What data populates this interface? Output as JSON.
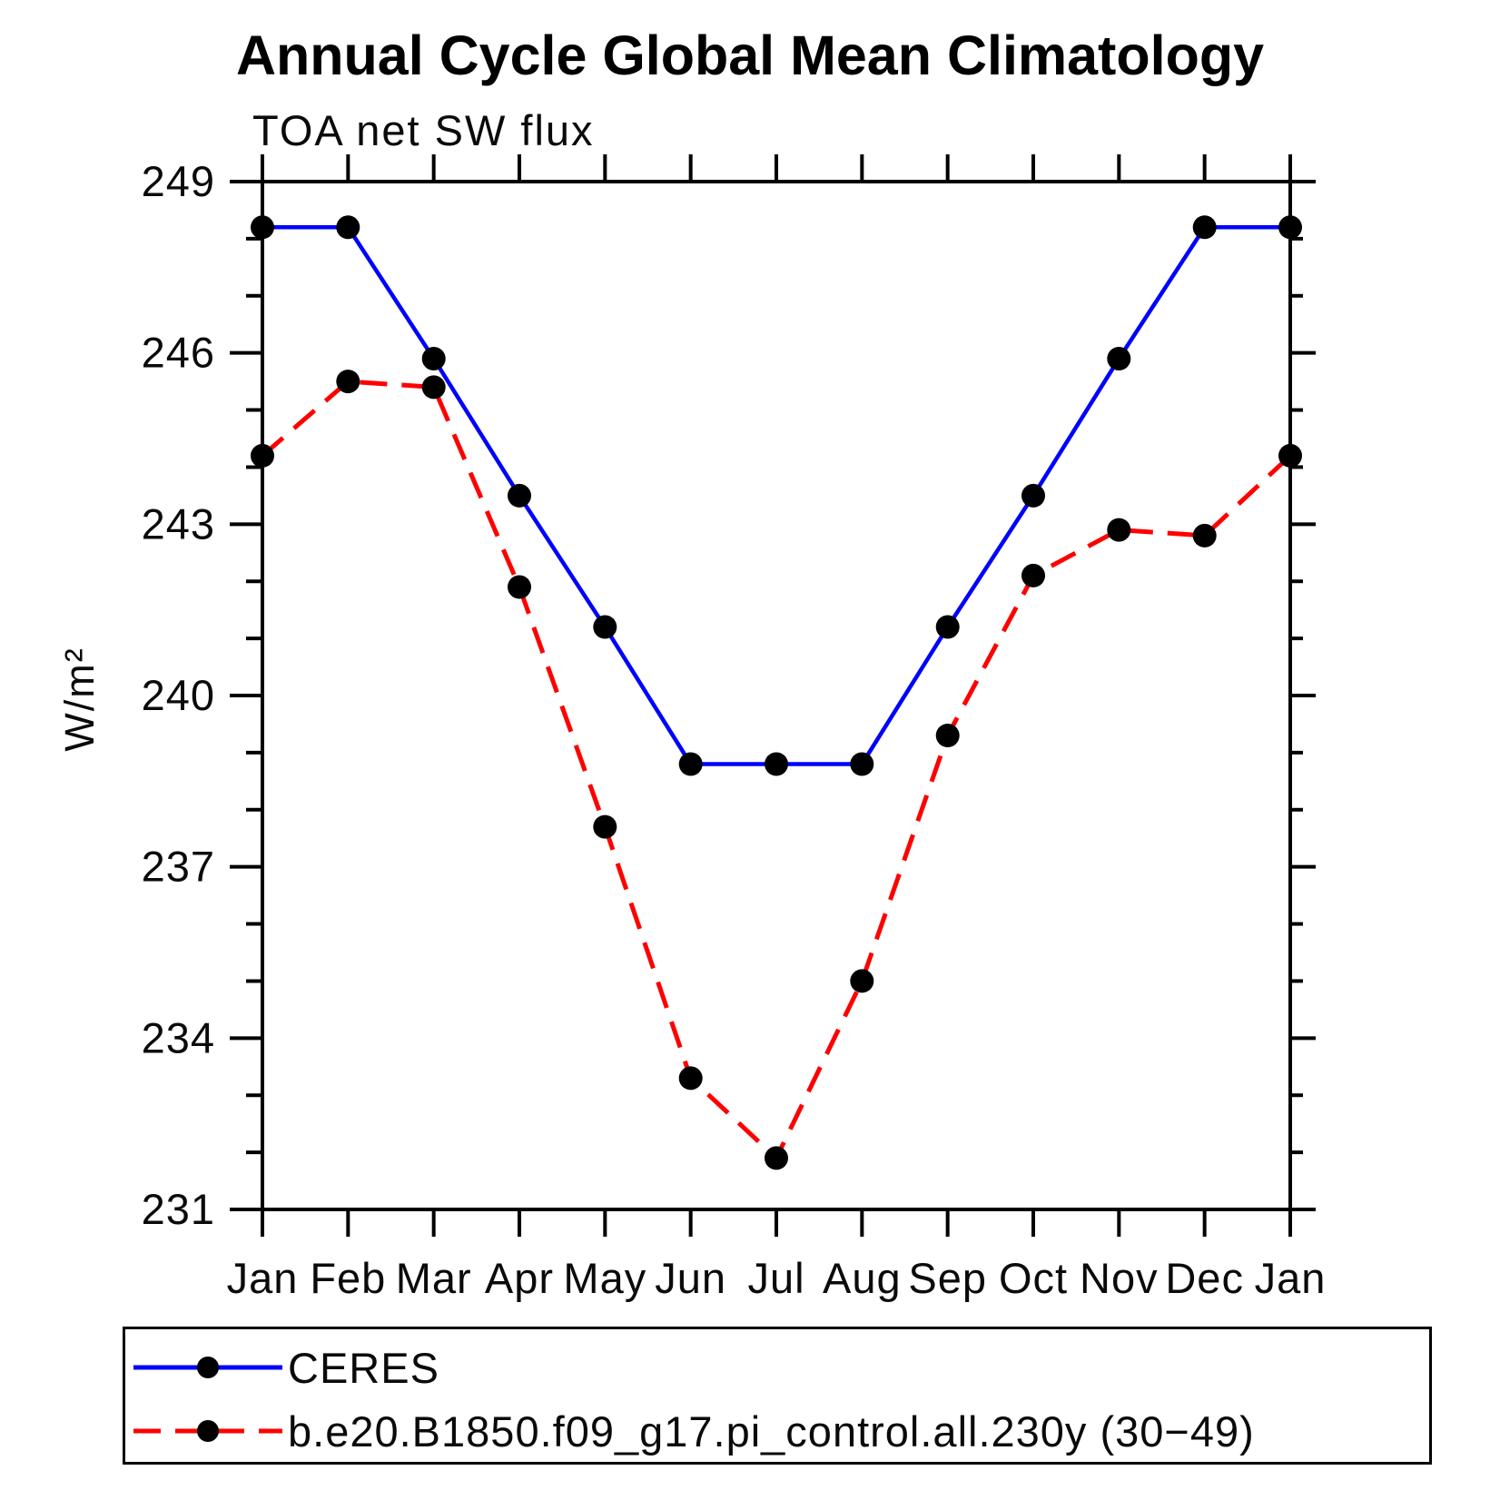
{
  "page": {
    "background": "#ffffff"
  },
  "chart_data": {
    "type": "line",
    "title": "Annual Cycle Global Mean Climatology",
    "subtitle": "TOA net SW flux",
    "ylabel": "W/m²",
    "x_labels": [
      "Jan",
      "Feb",
      "Mar",
      "Apr",
      "May",
      "Jun",
      "Jul",
      "Aug",
      "Sep",
      "Oct",
      "Nov",
      "Dec",
      "Jan"
    ],
    "ylim": [
      231,
      249
    ],
    "ytick_major": [
      231,
      234,
      237,
      240,
      243,
      246,
      249
    ],
    "ytick_minor_interval": 1,
    "grid": false,
    "legend_position": "bottom-left boxed",
    "axis_color": "#000000",
    "series": [
      {
        "name": "CERES",
        "color": "#0000ff",
        "line_style": "solid",
        "marker": "filled-circle",
        "marker_color": "#000000",
        "values": [
          248.2,
          248.2,
          245.9,
          243.5,
          241.2,
          238.8,
          238.8,
          238.8,
          241.2,
          243.5,
          245.9,
          248.2,
          248.2
        ]
      },
      {
        "name": "b.e20.B1850.f09_g17.pi_control.all.230y (30−49)",
        "color": "#ff0000",
        "line_style": "dashed",
        "marker": "filled-circle",
        "marker_color": "#000000",
        "values": [
          244.2,
          245.5,
          245.4,
          241.9,
          237.7,
          233.3,
          231.9,
          235.0,
          239.3,
          242.1,
          242.9,
          242.8,
          244.2
        ]
      }
    ]
  }
}
